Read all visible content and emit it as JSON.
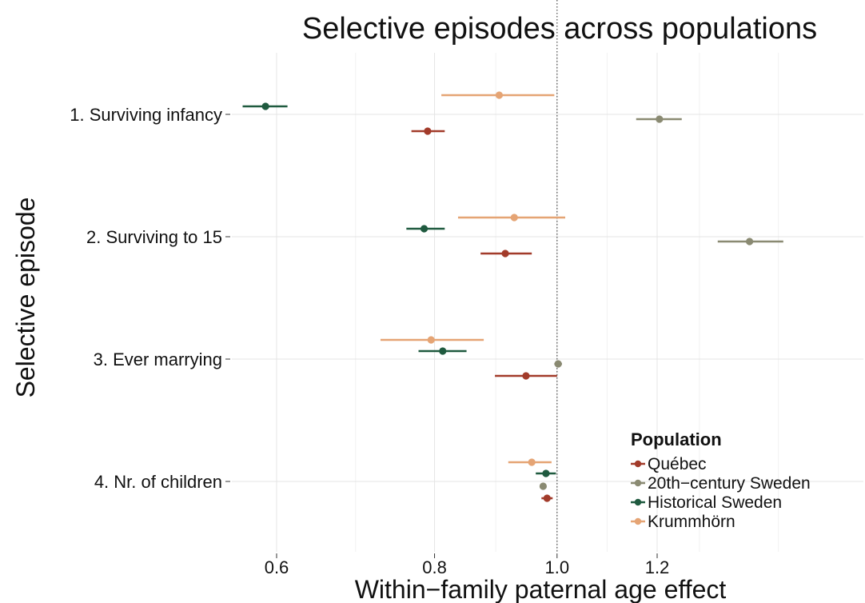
{
  "chart_data": {
    "type": "scatter",
    "subtype": "forest-plot-with-error-bars",
    "title": "Selective episodes across populations",
    "xlabel": "Within−family paternal age effect",
    "ylabel": "Selective episode",
    "x_scale": "log",
    "xlim": [
      0.54,
      1.56
    ],
    "x_ticks": [
      0.6,
      0.8,
      1.0,
      1.2
    ],
    "x_tick_labels": [
      "0.6",
      "0.8",
      "1.0",
      "1.2"
    ],
    "reference_line": {
      "x": 1.0,
      "style": "dotted"
    },
    "grid": true,
    "categories": [
      "1. Surviving infancy",
      "2. Surviving to 15",
      "3. Ever marrying",
      "4. Nr. of children"
    ],
    "legend": {
      "title": "Population",
      "placement": "bottom-right",
      "entries": [
        "Québec",
        "20th−century Sweden",
        "Historical Sweden",
        "Krummhörn"
      ]
    },
    "series": [
      {
        "name": "Krummhörn",
        "color": "#e5a474",
        "points": [
          {
            "category": "1. Surviving infancy",
            "estimate": 0.9,
            "lower": 0.81,
            "upper": 0.995
          },
          {
            "category": "2. Surviving to 15",
            "estimate": 0.925,
            "lower": 0.835,
            "upper": 1.015
          },
          {
            "category": "3. Ever marrying",
            "estimate": 0.795,
            "lower": 0.725,
            "upper": 0.875
          },
          {
            "category": "4. Nr. of children",
            "estimate": 0.955,
            "lower": 0.915,
            "upper": 0.99
          }
        ]
      },
      {
        "name": "Historical Sweden",
        "color": "#1f5a3f",
        "points": [
          {
            "category": "1. Surviving infancy",
            "estimate": 0.588,
            "lower": 0.564,
            "upper": 0.612
          },
          {
            "category": "2. Surviving to 15",
            "estimate": 0.785,
            "lower": 0.76,
            "upper": 0.815
          },
          {
            "category": "3. Ever marrying",
            "estimate": 0.812,
            "lower": 0.777,
            "upper": 0.848
          },
          {
            "category": "4. Nr. of children",
            "estimate": 0.98,
            "lower": 0.962,
            "upper": 0.998
          }
        ]
      },
      {
        "name": "20th−century Sweden",
        "color": "#8a8a72",
        "points": [
          {
            "category": "1. Surviving infancy",
            "estimate": 1.205,
            "lower": 1.155,
            "upper": 1.255
          },
          {
            "category": "2. Surviving to 15",
            "estimate": 1.42,
            "lower": 1.34,
            "upper": 1.51
          },
          {
            "category": "3. Ever marrying",
            "estimate": 1.002,
            "lower": 0.995,
            "upper": 1.009
          },
          {
            "category": "4. Nr. of children",
            "estimate": 0.975,
            "lower": 0.972,
            "upper": 0.978
          }
        ]
      },
      {
        "name": "Québec",
        "color": "#a23b2a",
        "points": [
          {
            "category": "1. Surviving infancy",
            "estimate": 0.79,
            "lower": 0.767,
            "upper": 0.815
          },
          {
            "category": "2. Surviving to 15",
            "estimate": 0.91,
            "lower": 0.87,
            "upper": 0.955
          },
          {
            "category": "3. Ever marrying",
            "estimate": 0.945,
            "lower": 0.893,
            "upper": 1.0
          },
          {
            "category": "4. Nr. of children",
            "estimate": 0.982,
            "lower": 0.972,
            "upper": 0.992
          }
        ]
      }
    ]
  }
}
